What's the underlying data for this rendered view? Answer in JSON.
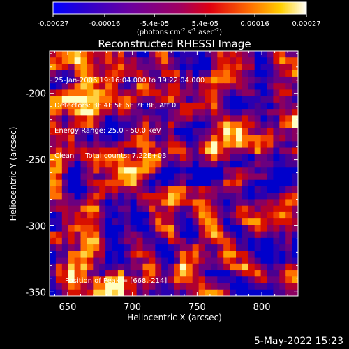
{
  "colors": {
    "scale": [
      "#0000ff",
      "#4b0082",
      "#800080",
      "#c00020",
      "#ff4000",
      "#ff9000",
      "#ffff00",
      "#ffffff"
    ],
    "background": "#000000",
    "foreground": "#ffffff"
  },
  "colorbar": {
    "tick_labels": [
      "-0.00027",
      "-0.00016",
      "-5.4e-05",
      "5.4e-05",
      "0.00016",
      "0.00027"
    ],
    "tick_values": [
      -0.00027,
      -0.00016,
      -5.4e-05,
      5.4e-05,
      0.00016,
      0.00027
    ],
    "range": [
      -0.00027,
      0.00027
    ],
    "units_label": "(photons cm",
    "units_exp1": "-2",
    "units_mid": " s",
    "units_exp2": "-1",
    "units_tail": " asec",
    "units_exp3": "-2",
    "units_close": ")"
  },
  "chart_data": {
    "type": "heatmap",
    "title": "Reconstructed RHESSI Image",
    "xlabel": "Heliocentric X (arcsec)",
    "ylabel": "Heliocentric Y (arcsec)",
    "xlim": [
      636,
      828
    ],
    "ylim": [
      -353,
      -168
    ],
    "x_ticks": [
      650,
      700,
      750,
      800
    ],
    "x_tick_labels": [
      "650",
      "700",
      "750",
      "800"
    ],
    "y_ticks": [
      -200,
      -250,
      -300,
      -350
    ],
    "y_tick_labels": [
      "-200",
      "-250",
      "-300",
      "-350"
    ],
    "grid_cols": 40,
    "grid_rows": 38,
    "annotations": [
      "25-Jan-2006 19:16:04.000 to 19:22:04.000",
      "Detectors: 3F 4F 5F 6F 7F 8F, Att 0",
      "Energy Range: 25.0 - 50.0 keV",
      "Clean     Total counts: 7.22E+03"
    ],
    "peak_label": "Position of Peak = [668,-214]",
    "peak": [
      668,
      -214
    ]
  },
  "timestamp": "5-May-2022 15:23"
}
